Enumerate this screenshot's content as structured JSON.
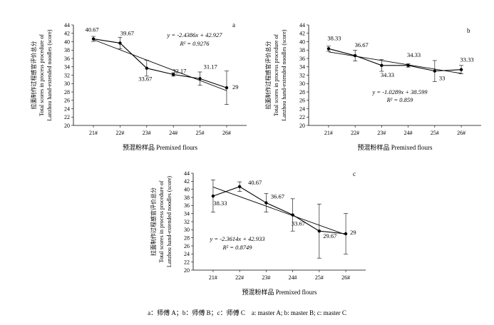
{
  "figure": {
    "caption": "a：师傅 A；b：师傅 B；c：师傅 C　a: master A; b: master B; c: master C"
  },
  "chart_data": [
    {
      "type": "line",
      "panel_label": "a",
      "categories": [
        "21#",
        "22#",
        "23#",
        "24#",
        "25#",
        "26#"
      ],
      "series": [
        {
          "values": [
            40.67,
            39.67,
            33.67,
            32.17,
            31.17,
            29
          ],
          "errors": [
            0.6,
            1.4,
            1.9,
            0.4,
            1.6,
            4.0
          ],
          "point_labels": [
            "40.67",
            "39.67",
            "33.67",
            "32.17",
            "31.17",
            "29"
          ]
        }
      ],
      "trendline": {
        "slope": -2.4386,
        "intercept": 42.927
      },
      "equation": "y = -2.4386x + 42.927",
      "r2": "R² = 0.9276",
      "xlabel": "预混粉样品 Premixed flours",
      "ylabel": [
        "拉面制作过程感官评价总分",
        "Total scores in process procedure of",
        "Lanzhou hand-extended noodles (score)"
      ],
      "ylim": [
        20,
        44
      ],
      "yticks": [
        20,
        22,
        24,
        26,
        28,
        30,
        32,
        34,
        36,
        38,
        40,
        42,
        44
      ],
      "grid": false,
      "legend": "none"
    },
    {
      "type": "line",
      "panel_label": "b",
      "categories": [
        "21#",
        "22#",
        "23#",
        "24#",
        "25#",
        "26#"
      ],
      "series": [
        {
          "values": [
            38.33,
            36.67,
            34.33,
            34.33,
            33,
            33.33
          ],
          "errors": [
            0.6,
            1.3,
            1.4,
            0.4,
            2.5,
            1.0
          ],
          "point_labels": [
            "38.33",
            "36.67",
            "34.33",
            "34.33",
            "33",
            "33.33"
          ]
        }
      ],
      "trendline": {
        "slope": -1.0289,
        "intercept": 38.599
      },
      "equation": "y = -1.0289x + 38.599",
      "r2": "R² = 0.859",
      "xlabel": "预混粉样品 Premixed flours",
      "ylabel": [
        "拉面制作过程感官评价总分",
        "Total scores in process procedure of",
        "Lanzhou hand-extended noodles (score)"
      ],
      "ylim": [
        20,
        44
      ],
      "yticks": [
        20,
        22,
        24,
        26,
        28,
        30,
        32,
        34,
        36,
        38,
        40,
        42,
        44
      ],
      "grid": false,
      "legend": "none"
    },
    {
      "type": "line",
      "panel_label": "c",
      "categories": [
        "21#",
        "22#",
        "23#",
        "24#",
        "25#",
        "26#"
      ],
      "series": [
        {
          "values": [
            38.33,
            40.67,
            36.67,
            33.67,
            29.67,
            29
          ],
          "errors": [
            4.0,
            1.2,
            2.3,
            4.0,
            6.7,
            5.0
          ],
          "point_labels": [
            "38.33",
            "40.67",
            "36.67",
            "33.67",
            "29.67",
            "29"
          ]
        }
      ],
      "trendline": {
        "slope": -2.3614,
        "intercept": 42.933
      },
      "equation": "y = -2.3614x + 42.933",
      "r2": "R² = 0.8749",
      "xlabel": "预混粉样品 Premixed flours",
      "ylabel": [
        "拉面制作过程感官评价总分",
        "Total scores in process procedure of",
        "Lanzhou hand-extended noodles (score)"
      ],
      "ylim": [
        20,
        44
      ],
      "yticks": [
        20,
        22,
        24,
        26,
        28,
        30,
        32,
        34,
        36,
        38,
        40,
        42,
        44
      ],
      "grid": false,
      "legend": "none"
    }
  ]
}
